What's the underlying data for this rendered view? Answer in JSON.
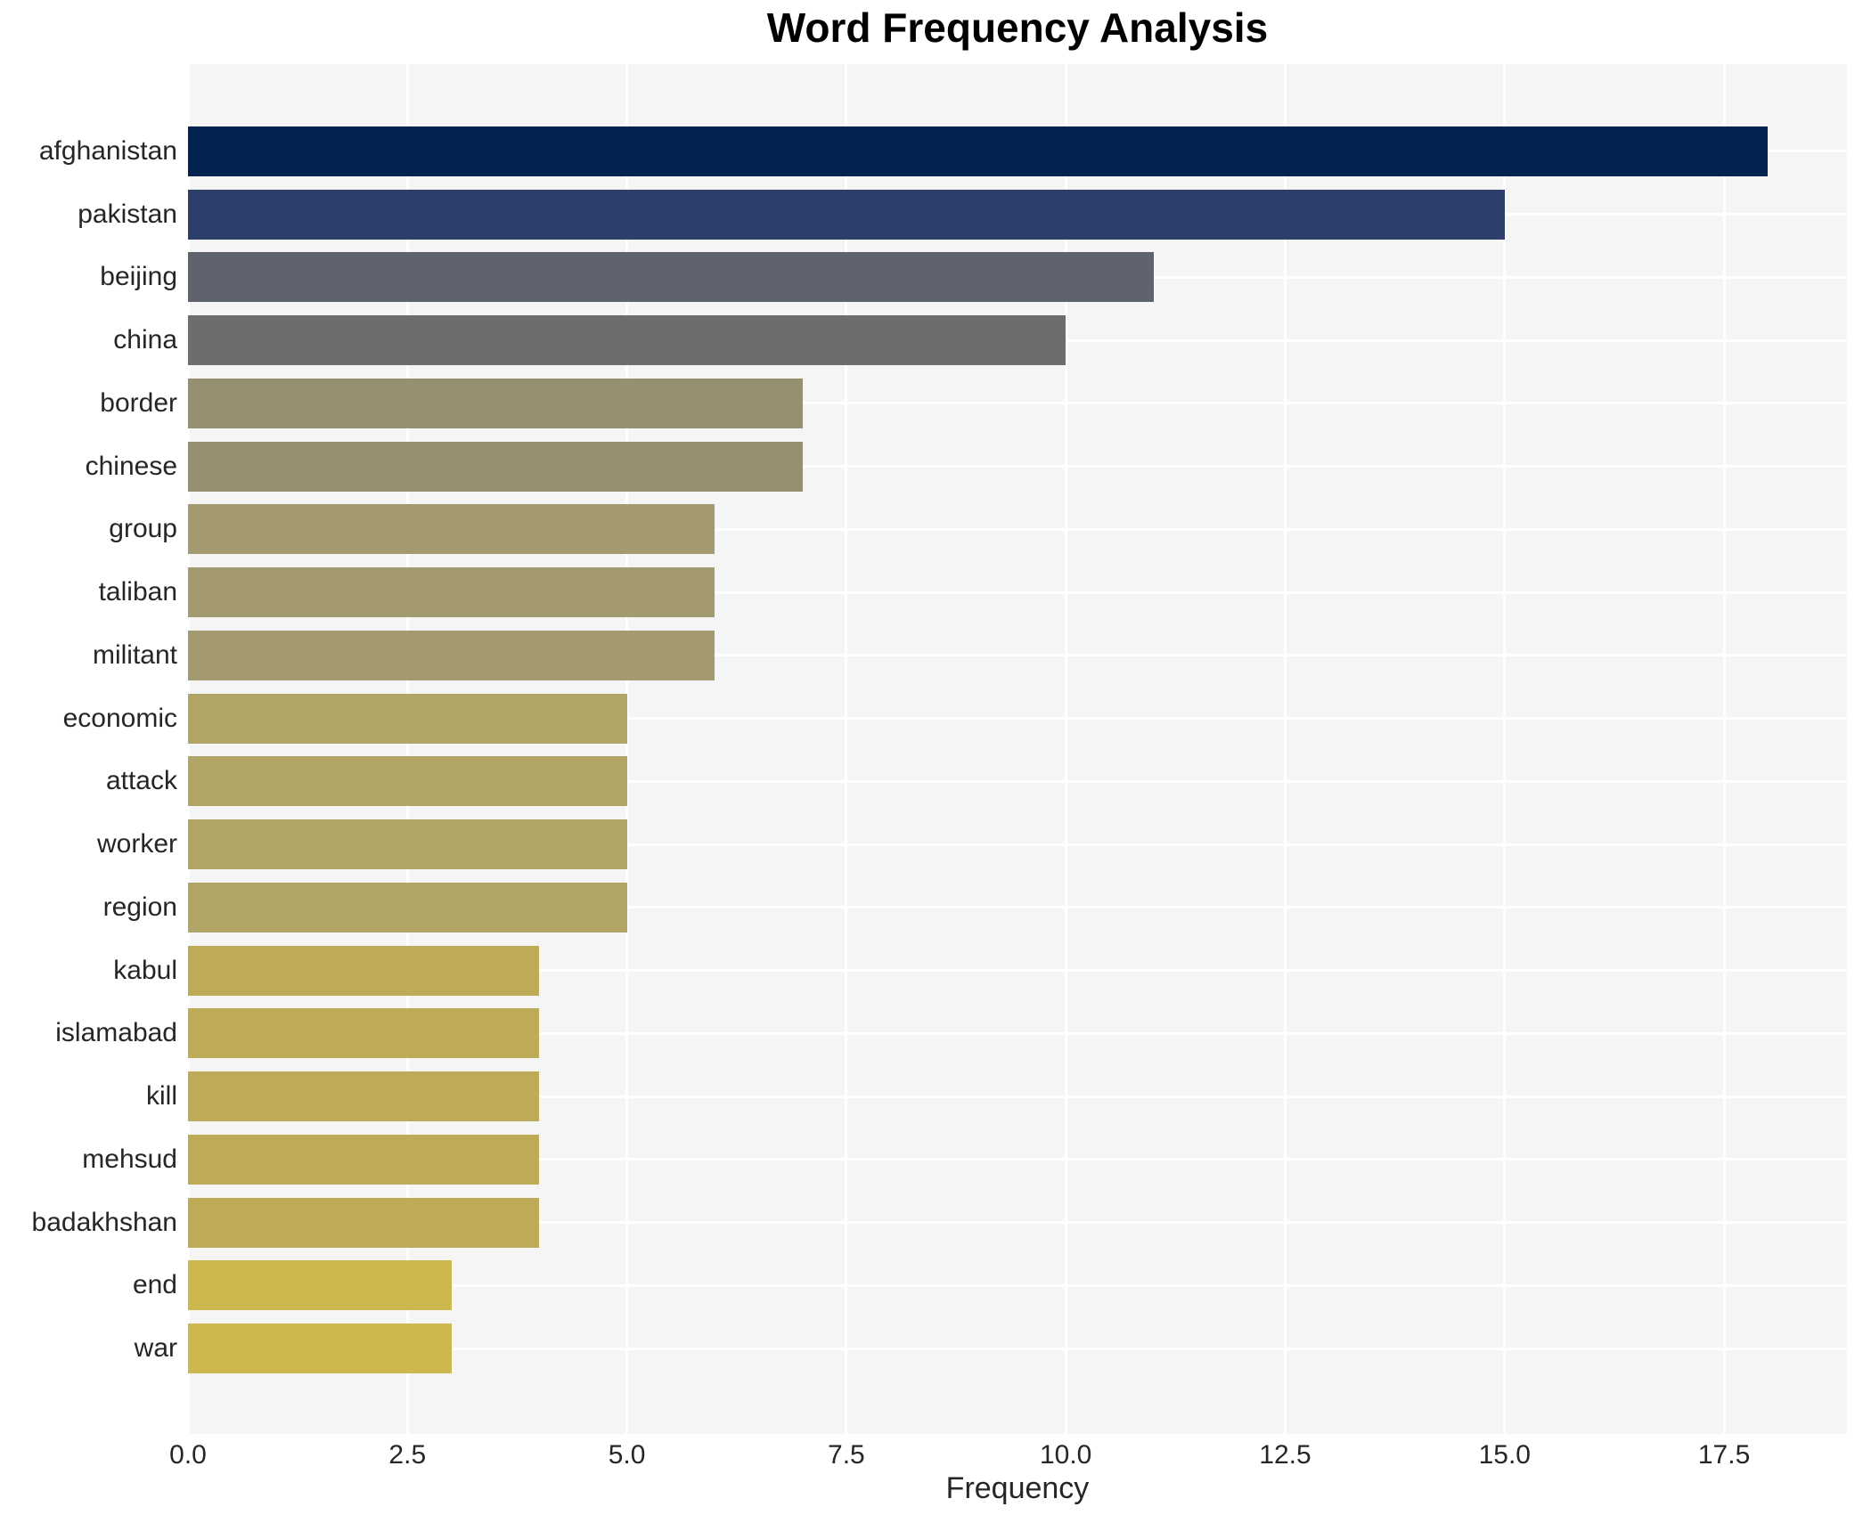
{
  "title": "Word Frequency Analysis",
  "chart_data": {
    "type": "bar",
    "orientation": "horizontal",
    "title": "Word Frequency Analysis",
    "xlabel": "Frequency",
    "ylabel": "",
    "categories": [
      "afghanistan",
      "pakistan",
      "beijing",
      "china",
      "border",
      "chinese",
      "group",
      "taliban",
      "militant",
      "economic",
      "attack",
      "worker",
      "region",
      "kabul",
      "islamabad",
      "kill",
      "mehsud",
      "badakhshan",
      "end",
      "war"
    ],
    "values": [
      18,
      15,
      11,
      10,
      7,
      7,
      6,
      6,
      6,
      5,
      5,
      5,
      5,
      4,
      4,
      4,
      4,
      4,
      3,
      3
    ],
    "bar_colors": [
      "#02224f",
      "#2d3e6b",
      "#5f636e",
      "#6c6e6e",
      "#968f70",
      "#968f70",
      "#a39a70",
      "#a39a70",
      "#a39a70",
      "#b0a567",
      "#b0a567",
      "#b0a567",
      "#b0a567",
      "#beab58",
      "#beab58",
      "#beab58",
      "#beab58",
      "#beab58",
      "#ccb84c",
      "#ccb84c"
    ],
    "xlim": [
      0,
      18.9
    ],
    "xticks": [
      0,
      2.5,
      5,
      7.5,
      10,
      12.5,
      15,
      17.5
    ],
    "xtick_labels": [
      "0.0",
      "2.5",
      "5.0",
      "7.5",
      "10.0",
      "12.5",
      "15.0",
      "17.5"
    ],
    "grid": true,
    "legend_visible": false,
    "plot_background": "#f5f5f6",
    "grid_color": "#ffffff",
    "text_color": "#262626",
    "title_color": "#000000"
  }
}
